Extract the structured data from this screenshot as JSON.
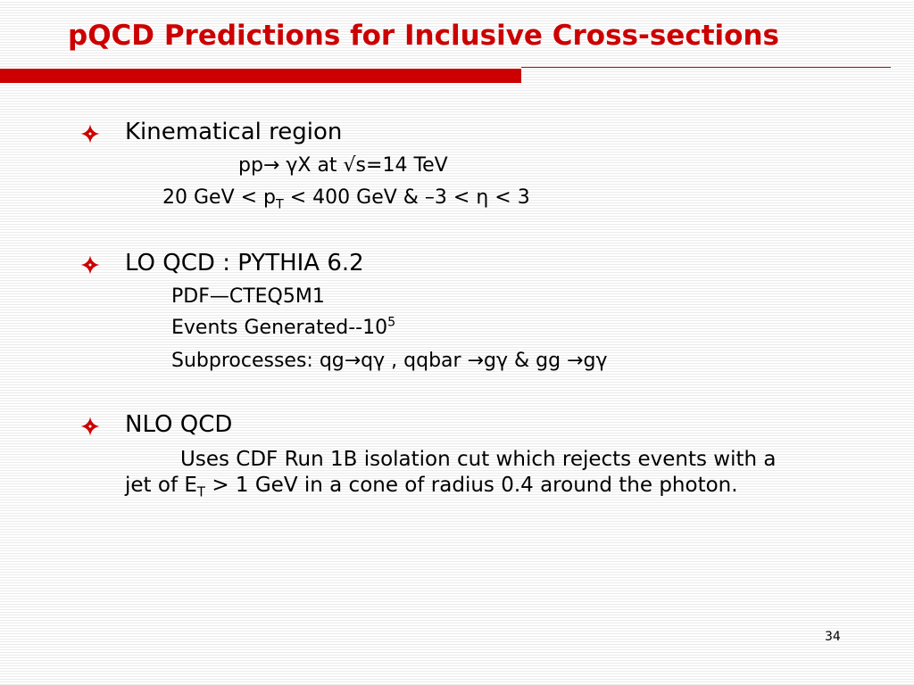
{
  "slide": {
    "title": "pQCD Predictions for Inclusive Cross-sections",
    "page_number": "34",
    "accent_color": "#cc0000",
    "bullet_icon": "diamond-bullet-icon"
  },
  "section1": {
    "heading": "Kinematical region",
    "line1": "pp→ γX at √s=14 TeV",
    "line2_part1": "20 GeV < p",
    "line2_sub": "T",
    "line2_part2": " < 400 GeV &  –3 < η < 3"
  },
  "section2": {
    "heading": "LO QCD : PYTHIA 6.2",
    "pdf": "PDF—CTEQ5M1",
    "events_text": "Events Generated--10",
    "events_sup": "5",
    "subprocesses": "Subprocesses: qg→qγ , qqbar →gγ  &  gg →gγ"
  },
  "section3": {
    "heading": "NLO QCD",
    "line1": "Uses CDF Run 1B isolation cut which  rejects events with a",
    "line2_part1": "jet of E",
    "line2_sub": "T",
    "line2_part2": " > 1  GeV in a cone of radius 0.4 around the photon."
  }
}
